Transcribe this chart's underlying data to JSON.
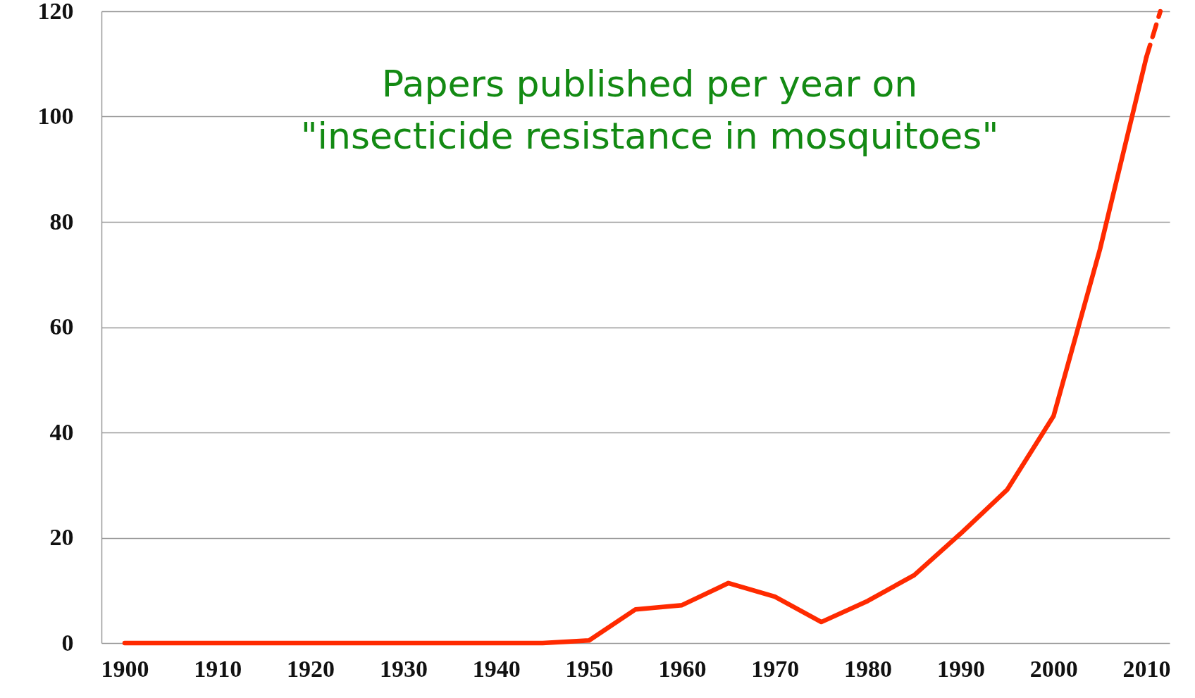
{
  "chart_data": {
    "type": "line",
    "title": "Papers published per year on\n\"insecticide resistance in mosquitoes\"",
    "series": [
      {
        "color": "#ff2a00",
        "line_style": "solid",
        "x": [
          1900,
          1905,
          1910,
          1915,
          1920,
          1925,
          1930,
          1935,
          1940,
          1945,
          1950,
          1955,
          1960,
          1965,
          1970,
          1975,
          1980,
          1985,
          1990,
          1995,
          2000,
          2005,
          2010
        ],
        "values": [
          0,
          0,
          0,
          0,
          0,
          0,
          0,
          0,
          0,
          0,
          0.5,
          6.4,
          7.2,
          11.4,
          8.8,
          4,
          8,
          12.9,
          20.8,
          29.1,
          43.1,
          74.8,
          111.3
        ]
      },
      {
        "color": "#ff2a00",
        "line_style": "dashed",
        "x": [
          2010,
          2011.5
        ],
        "values": [
          111.3,
          120
        ]
      }
    ],
    "xlim": [
      1897.5,
      2012.5
    ],
    "xticks": [
      1900,
      1910,
      1920,
      1930,
      1940,
      1950,
      1960,
      1970,
      1980,
      1990,
      2000,
      2010
    ],
    "ylim": [
      0,
      120
    ],
    "yticks": [
      0,
      20,
      40,
      60,
      80,
      100,
      120
    ],
    "grid": "y",
    "marker": "none"
  }
}
